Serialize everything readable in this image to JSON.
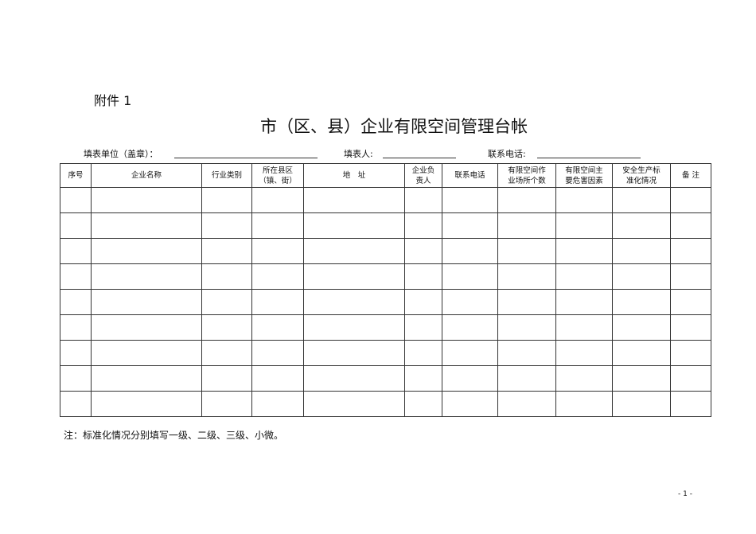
{
  "attachment": "附件 1",
  "title": "市（区、县）企业有限空间管理台帐",
  "form": {
    "unit_label": "填表单位（盖章）：",
    "filler_label": "填表人:",
    "phone_label": "联系电话:"
  },
  "table": {
    "headers": [
      "序号",
      "企业名称",
      "行业类别",
      "所在县区\n（镇、街）",
      "地　址",
      "企业负\n责人",
      "联系电话",
      "有限空间作\n业场所个数",
      "有限空间主\n要危害因素",
      "安全生产标\n准化情况",
      "备 注"
    ],
    "empty_rows": 9
  },
  "note": "注：标准化情况分别填写一级、二级、三级、小微。",
  "page_number": "- 1 -"
}
